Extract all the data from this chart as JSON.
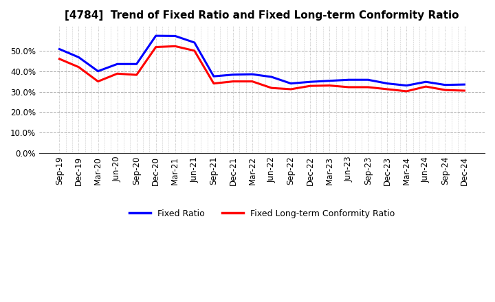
{
  "title": "[4784]  Trend of Fixed Ratio and Fixed Long-term Conformity Ratio",
  "x_labels": [
    "Sep-19",
    "Dec-19",
    "Mar-20",
    "Jun-20",
    "Sep-20",
    "Dec-20",
    "Mar-21",
    "Jun-21",
    "Sep-21",
    "Dec-21",
    "Mar-22",
    "Jun-22",
    "Sep-22",
    "Dec-22",
    "Mar-23",
    "Jun-23",
    "Sep-23",
    "Dec-23",
    "Mar-24",
    "Jun-24",
    "Sep-24",
    "Dec-24"
  ],
  "fixed_ratio": [
    0.508,
    0.468,
    0.4,
    0.435,
    0.435,
    0.573,
    0.572,
    0.54,
    0.375,
    0.383,
    0.385,
    0.372,
    0.34,
    0.348,
    0.353,
    0.358,
    0.358,
    0.34,
    0.33,
    0.348,
    0.333,
    0.335
  ],
  "fixed_lt_ratio": [
    0.46,
    0.42,
    0.35,
    0.388,
    0.382,
    0.518,
    0.522,
    0.5,
    0.34,
    0.35,
    0.35,
    0.318,
    0.312,
    0.328,
    0.33,
    0.322,
    0.322,
    0.312,
    0.302,
    0.325,
    0.308,
    0.305
  ],
  "fixed_ratio_color": "#0000FF",
  "fixed_lt_ratio_color": "#FF0000",
  "ylim": [
    0.0,
    0.62
  ],
  "yticks": [
    0.0,
    0.1,
    0.2,
    0.3,
    0.4,
    0.5
  ],
  "background_color": "#FFFFFF",
  "h_grid_color": "#AAAAAA",
  "v_grid_color": "#999999",
  "legend_fixed_ratio": "Fixed Ratio",
  "legend_fixed_lt": "Fixed Long-term Conformity Ratio",
  "title_fontsize": 11,
  "tick_fontsize": 8.5,
  "line_width": 2.2
}
